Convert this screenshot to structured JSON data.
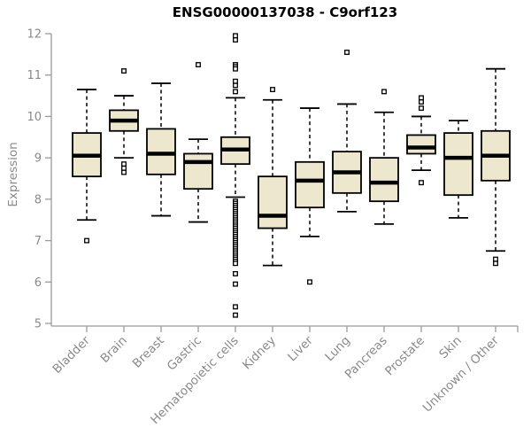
{
  "chart_data": {
    "type": "boxplot",
    "title": "ENSG00000137038 - C9orf123",
    "ylabel": "Expression",
    "xlabel": "",
    "ylim": [
      5,
      12
    ],
    "yticks": [
      5,
      6,
      7,
      8,
      9,
      10,
      11,
      12
    ],
    "grid": false,
    "legend": null,
    "categories": [
      "Bladder",
      "Brain",
      "Breast",
      "Gastric",
      "Hematopoietic cells",
      "Kidney",
      "Liver",
      "Lung",
      "Pancreas",
      "Prostate",
      "Skin",
      "Unknown / Other"
    ],
    "series": [
      {
        "name": "Bladder",
        "low": 7.5,
        "q1": 8.55,
        "median": 9.05,
        "q3": 9.6,
        "high": 10.65,
        "outliers": [
          7.0
        ]
      },
      {
        "name": "Brain",
        "low": 9.0,
        "q1": 9.65,
        "median": 9.9,
        "q3": 10.15,
        "high": 10.5,
        "outliers": [
          11.1,
          8.85,
          8.75,
          8.65
        ]
      },
      {
        "name": "Breast",
        "low": 7.6,
        "q1": 8.6,
        "median": 9.1,
        "q3": 9.7,
        "high": 10.8,
        "outliers": []
      },
      {
        "name": "Gastric",
        "low": 7.45,
        "q1": 8.25,
        "median": 8.9,
        "q3": 9.1,
        "high": 9.45,
        "outliers": [
          11.25
        ]
      },
      {
        "name": "Hematopoietic cells",
        "low": 8.05,
        "q1": 8.85,
        "median": 9.2,
        "q3": 9.5,
        "high": 10.45,
        "outliers": [
          11.95,
          11.85,
          11.25,
          11.2,
          11.15,
          10.85,
          10.75,
          10.6,
          7.95,
          7.9,
          7.85,
          7.8,
          7.75,
          7.7,
          7.65,
          7.6,
          7.55,
          7.5,
          7.45,
          7.4,
          7.35,
          7.3,
          7.25,
          7.2,
          7.15,
          7.1,
          7.05,
          7.0,
          6.95,
          6.9,
          6.85,
          6.8,
          6.75,
          6.7,
          6.65,
          6.6,
          6.55,
          6.5,
          6.45,
          6.2,
          5.95,
          5.4,
          5.2
        ]
      },
      {
        "name": "Kidney",
        "low": 6.4,
        "q1": 7.3,
        "median": 7.6,
        "q3": 8.55,
        "high": 10.4,
        "outliers": [
          10.65
        ]
      },
      {
        "name": "Liver",
        "low": 7.1,
        "q1": 7.8,
        "median": 8.45,
        "q3": 8.9,
        "high": 10.2,
        "outliers": [
          6.0
        ]
      },
      {
        "name": "Lung",
        "low": 7.7,
        "q1": 8.15,
        "median": 8.65,
        "q3": 9.15,
        "high": 10.3,
        "outliers": [
          11.55
        ]
      },
      {
        "name": "Pancreas",
        "low": 7.4,
        "q1": 7.95,
        "median": 8.4,
        "q3": 9.0,
        "high": 10.1,
        "outliers": [
          10.6
        ]
      },
      {
        "name": "Prostate",
        "low": 8.7,
        "q1": 9.1,
        "median": 9.25,
        "q3": 9.55,
        "high": 10.0,
        "outliers": [
          10.45,
          10.35,
          10.2,
          8.4
        ]
      },
      {
        "name": "Skin",
        "low": 7.55,
        "q1": 8.1,
        "median": 9.0,
        "q3": 9.6,
        "high": 9.9,
        "outliers": []
      },
      {
        "name": "Unknown / Other",
        "low": 6.75,
        "q1": 8.45,
        "median": 9.05,
        "q3": 9.65,
        "high": 11.15,
        "outliers": [
          6.55,
          6.45
        ]
      }
    ],
    "colors": {
      "box_fill": "#ECE7CD",
      "box_border": "#000000",
      "median": "#000000",
      "whisker": "#000000",
      "outlier": "#000000",
      "axis": "#9a9a9a",
      "label": "#8a8a8a",
      "title": "#000000"
    }
  }
}
